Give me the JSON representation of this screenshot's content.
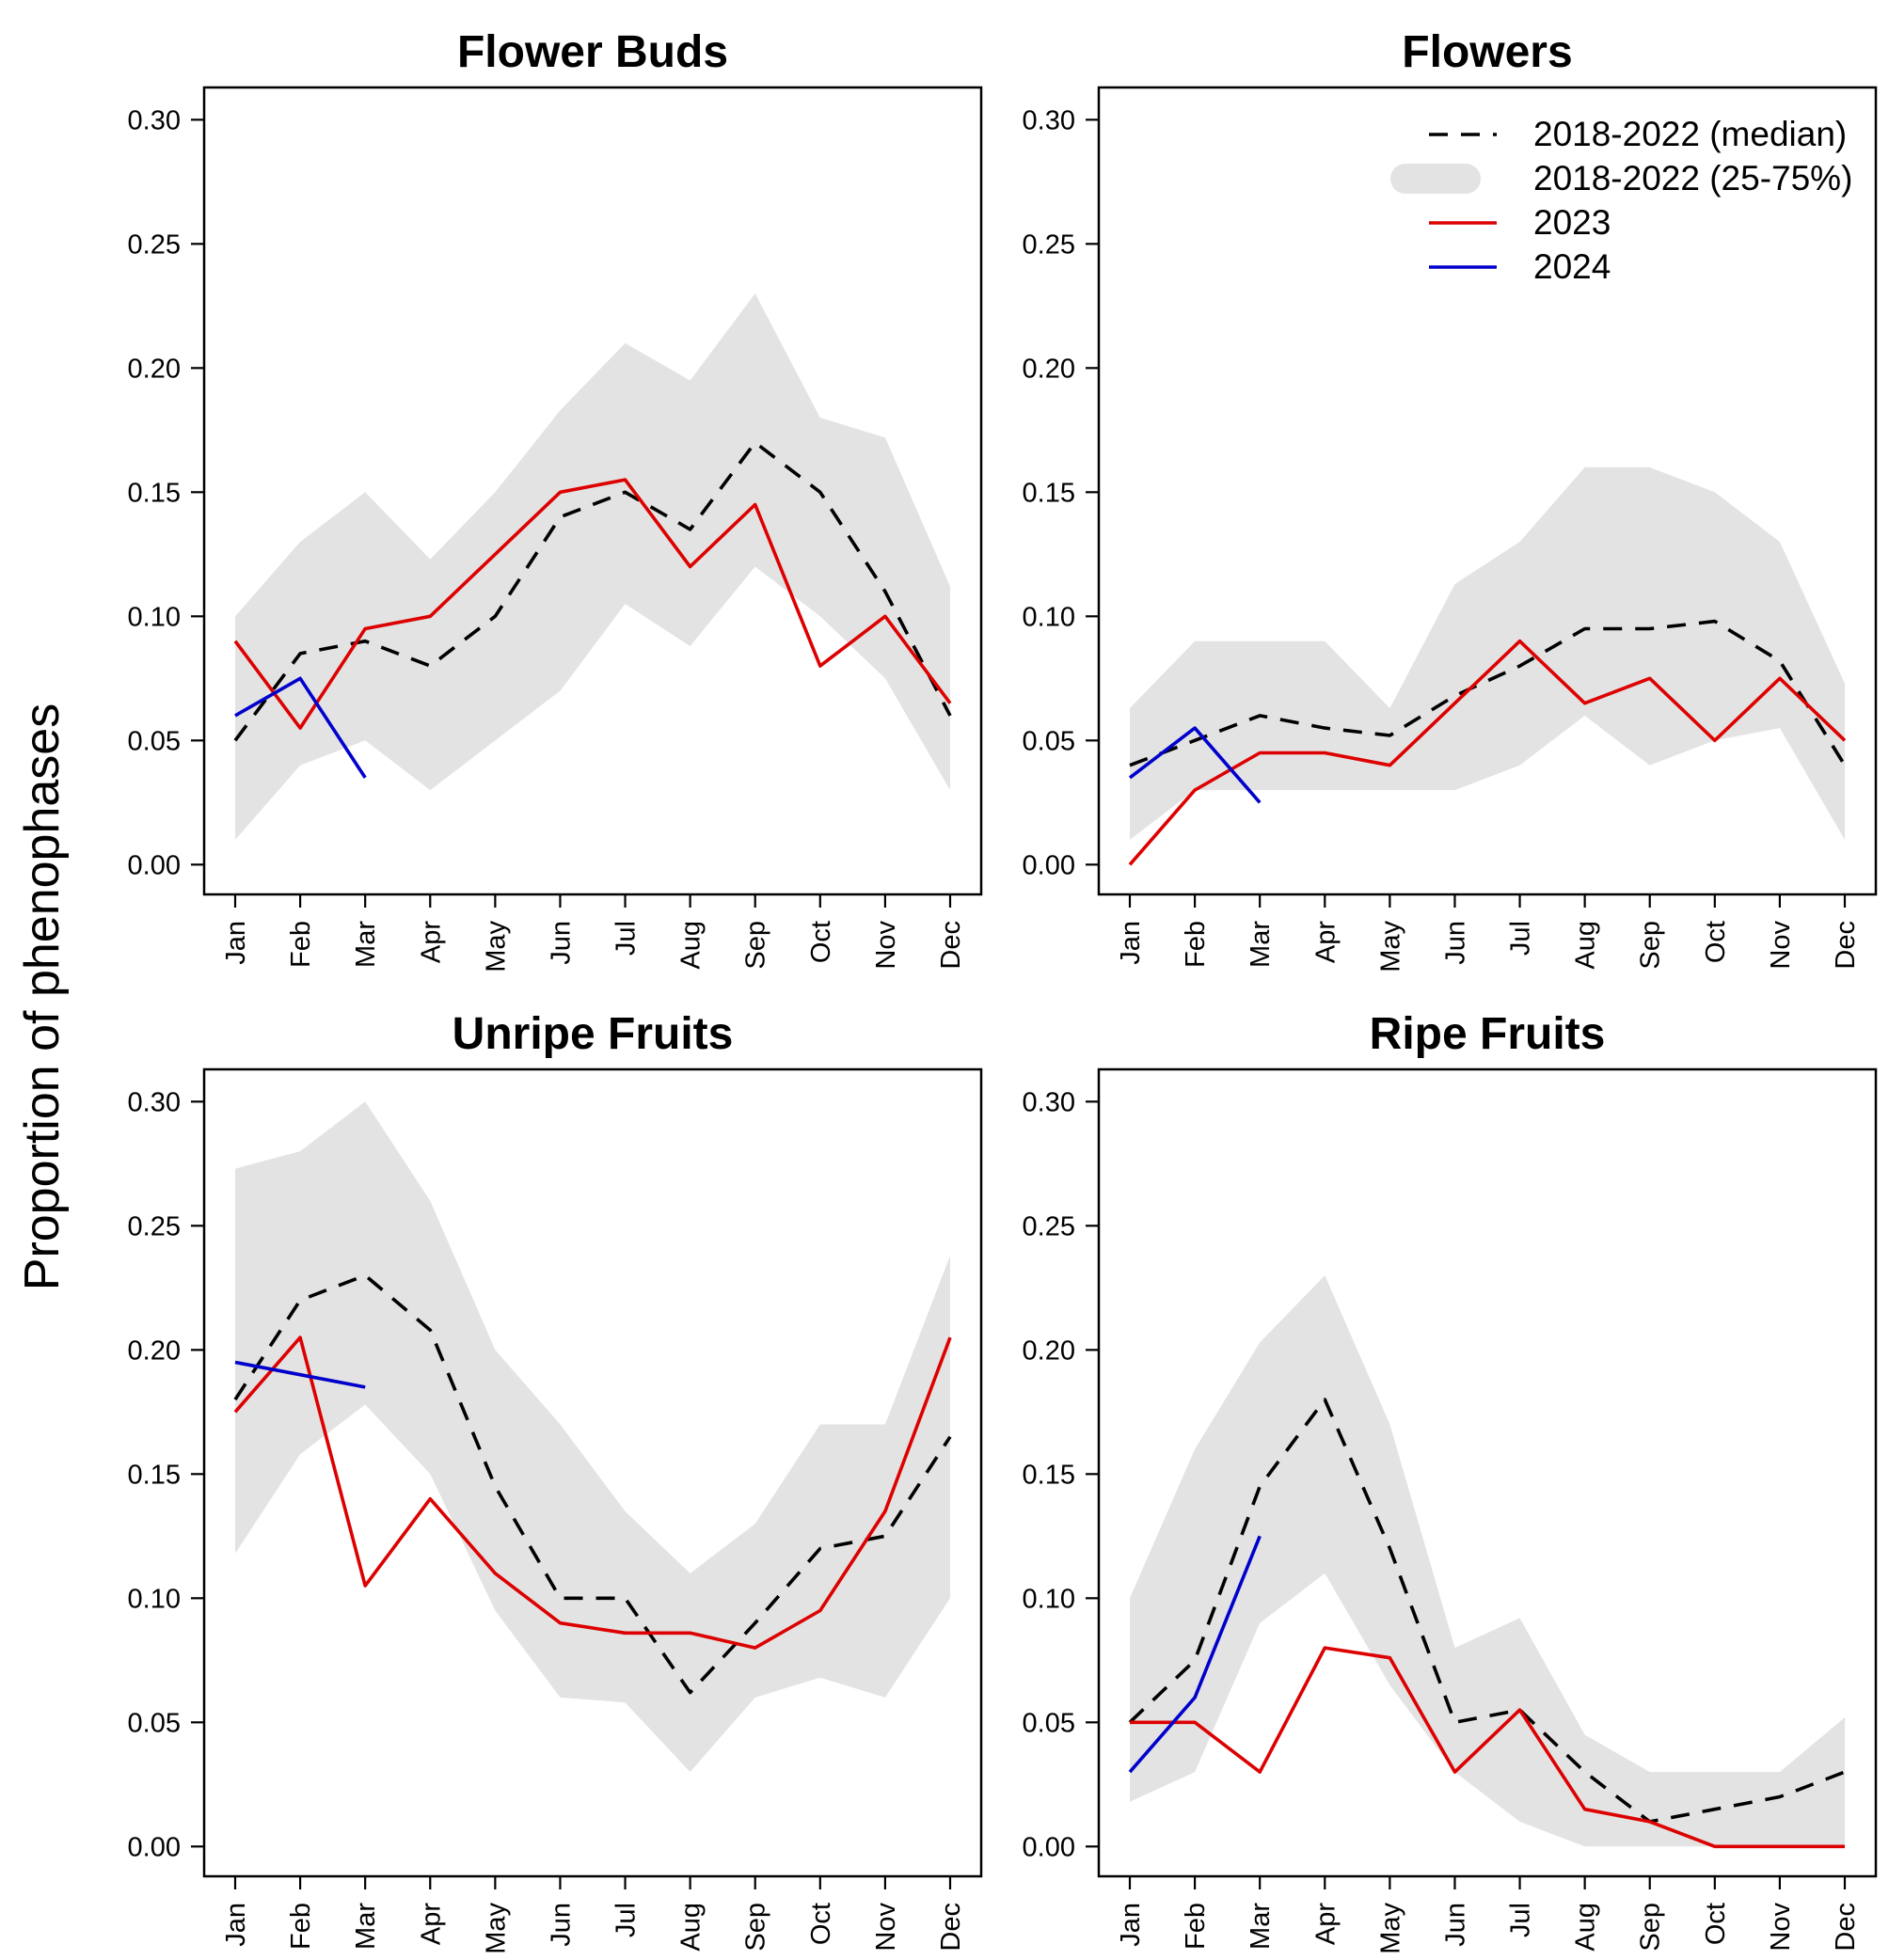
{
  "figure": {
    "ylabel": "Proportion of phenophases",
    "legend": {
      "placement": "top-right of Flowers panel",
      "entries": [
        {
          "key": "median",
          "label": "2018-2022 (median)",
          "color": "#000000",
          "style": "dashed"
        },
        {
          "key": "iqr",
          "label": "2018-2022 (25-75%)",
          "color": "#e3e3e3",
          "style": "band"
        },
        {
          "key": "y2023",
          "label": "2023",
          "color": "#dd0000",
          "style": "solid"
        },
        {
          "key": "y2024",
          "label": "2024",
          "color": "#0000cc",
          "style": "solid"
        }
      ]
    }
  },
  "chart_data": [
    {
      "type": "line",
      "title": "Flower Buds",
      "categories": [
        "Jan",
        "Feb",
        "Mar",
        "Apr",
        "May",
        "Jun",
        "Jul",
        "Aug",
        "Sep",
        "Oct",
        "Nov",
        "Dec"
      ],
      "yticks": [
        "0.00",
        "0.05",
        "0.10",
        "0.15",
        "0.20",
        "0.25",
        "0.30"
      ],
      "ylim": [
        -0.012,
        0.313
      ],
      "band": {
        "lower": [
          0.01,
          0.04,
          0.05,
          0.03,
          0.05,
          0.07,
          0.105,
          0.088,
          0.12,
          0.1,
          0.075,
          0.03
        ],
        "upper": [
          0.1,
          0.13,
          0.15,
          0.123,
          0.15,
          0.183,
          0.21,
          0.195,
          0.23,
          0.18,
          0.172,
          0.112
        ]
      },
      "series": [
        {
          "key": "median",
          "values": [
            0.05,
            0.085,
            0.09,
            0.08,
            0.1,
            0.14,
            0.15,
            0.135,
            0.17,
            0.15,
            0.11,
            0.06
          ]
        },
        {
          "key": "y2023",
          "values": [
            0.09,
            0.055,
            0.095,
            0.1,
            0.125,
            0.15,
            0.155,
            0.12,
            0.145,
            0.08,
            0.1,
            0.065
          ]
        },
        {
          "key": "y2024",
          "values": [
            0.06,
            0.075,
            0.035,
            null,
            null,
            null,
            null,
            null,
            null,
            null,
            null,
            null
          ]
        }
      ]
    },
    {
      "type": "line",
      "title": "Flowers",
      "categories": [
        "Jan",
        "Feb",
        "Mar",
        "Apr",
        "May",
        "Jun",
        "Jul",
        "Aug",
        "Sep",
        "Oct",
        "Nov",
        "Dec"
      ],
      "yticks": [
        "0.00",
        "0.05",
        "0.10",
        "0.15",
        "0.20",
        "0.25",
        "0.30"
      ],
      "ylim": [
        -0.012,
        0.313
      ],
      "band": {
        "lower": [
          0.01,
          0.03,
          0.03,
          0.03,
          0.03,
          0.03,
          0.04,
          0.06,
          0.04,
          0.05,
          0.055,
          0.01
        ],
        "upper": [
          0.063,
          0.09,
          0.09,
          0.09,
          0.063,
          0.113,
          0.13,
          0.16,
          0.16,
          0.15,
          0.13,
          0.073
        ]
      },
      "series": [
        {
          "key": "median",
          "values": [
            0.04,
            0.05,
            0.06,
            0.055,
            0.052,
            0.068,
            0.08,
            0.095,
            0.095,
            0.098,
            0.082,
            0.04
          ]
        },
        {
          "key": "y2023",
          "values": [
            0.0,
            0.03,
            0.045,
            0.045,
            0.04,
            0.065,
            0.09,
            0.065,
            0.075,
            0.05,
            0.075,
            0.05
          ]
        },
        {
          "key": "y2024",
          "values": [
            0.035,
            0.055,
            0.025,
            null,
            null,
            null,
            null,
            null,
            null,
            null,
            null,
            null
          ]
        }
      ]
    },
    {
      "type": "line",
      "title": "Unripe Fruits",
      "categories": [
        "Jan",
        "Feb",
        "Mar",
        "Apr",
        "May",
        "Jun",
        "Jul",
        "Aug",
        "Sep",
        "Oct",
        "Nov",
        "Dec"
      ],
      "yticks": [
        "0.00",
        "0.05",
        "0.10",
        "0.15",
        "0.20",
        "0.25",
        "0.30"
      ],
      "ylim": [
        -0.012,
        0.313
      ],
      "band": {
        "lower": [
          0.118,
          0.158,
          0.178,
          0.15,
          0.095,
          0.06,
          0.058,
          0.03,
          0.06,
          0.068,
          0.06,
          0.1
        ],
        "upper": [
          0.273,
          0.28,
          0.3,
          0.26,
          0.2,
          0.17,
          0.135,
          0.11,
          0.13,
          0.17,
          0.17,
          0.238
        ]
      },
      "series": [
        {
          "key": "median",
          "values": [
            0.18,
            0.22,
            0.23,
            0.208,
            0.145,
            0.1,
            0.1,
            0.062,
            0.09,
            0.12,
            0.125,
            0.165
          ]
        },
        {
          "key": "y2023",
          "values": [
            0.175,
            0.205,
            0.105,
            0.14,
            0.11,
            0.09,
            0.086,
            0.086,
            0.08,
            0.095,
            0.135,
            0.205
          ]
        },
        {
          "key": "y2024",
          "values": [
            0.195,
            0.19,
            0.185,
            null,
            null,
            null,
            null,
            null,
            null,
            null,
            null,
            null
          ]
        }
      ]
    },
    {
      "type": "line",
      "title": "Ripe Fruits",
      "categories": [
        "Jan",
        "Feb",
        "Mar",
        "Apr",
        "May",
        "Jun",
        "Jul",
        "Aug",
        "Sep",
        "Oct",
        "Nov",
        "Dec"
      ],
      "yticks": [
        "0.00",
        "0.05",
        "0.10",
        "0.15",
        "0.20",
        "0.25",
        "0.30"
      ],
      "ylim": [
        -0.012,
        0.313
      ],
      "band": {
        "lower": [
          0.018,
          0.03,
          0.09,
          0.11,
          0.065,
          0.03,
          0.01,
          0.0,
          0.0,
          0.0,
          0.0,
          0.0
        ],
        "upper": [
          0.1,
          0.16,
          0.203,
          0.23,
          0.17,
          0.08,
          0.092,
          0.045,
          0.03,
          0.03,
          0.03,
          0.052
        ]
      },
      "series": [
        {
          "key": "median",
          "values": [
            0.05,
            0.075,
            0.145,
            0.18,
            0.12,
            0.05,
            0.055,
            0.03,
            0.01,
            0.015,
            0.02,
            0.03
          ]
        },
        {
          "key": "y2023",
          "values": [
            0.05,
            0.05,
            0.03,
            0.08,
            0.076,
            0.03,
            0.055,
            0.015,
            0.01,
            0.0,
            0.0,
            0.0
          ]
        },
        {
          "key": "y2024",
          "values": [
            0.03,
            0.06,
            0.125,
            null,
            null,
            null,
            null,
            null,
            null,
            null,
            null,
            null
          ]
        }
      ]
    }
  ]
}
